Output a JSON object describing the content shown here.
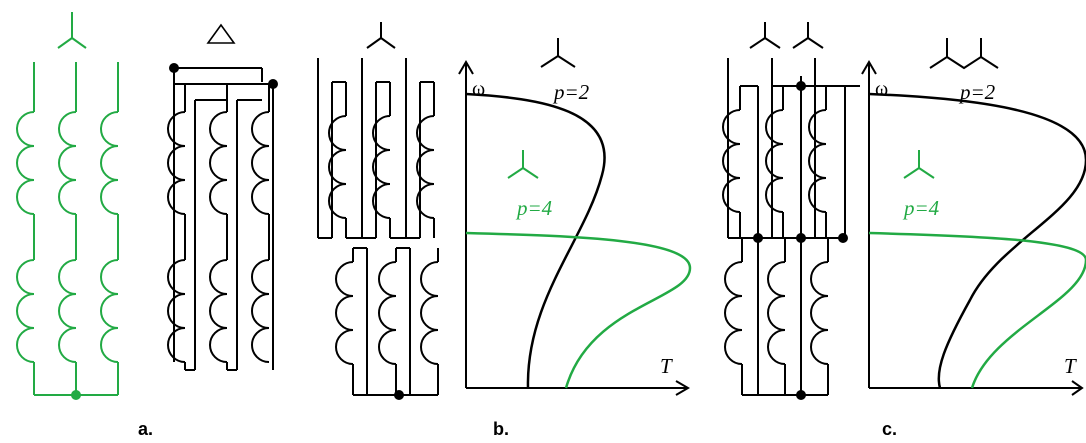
{
  "labels": {
    "a": "a.",
    "b": "b.",
    "c": "c."
  },
  "symbols": {
    "delta": "Δ"
  },
  "graph_b": {
    "omega": "ω",
    "torque": "T",
    "p2": "p=2",
    "p4": "p=4"
  },
  "graph_c": {
    "omega": "ω",
    "torque": "T",
    "p2": "p=2",
    "p4": "p=4"
  },
  "colors": {
    "green": "#22aa44",
    "black": "#000000"
  }
}
